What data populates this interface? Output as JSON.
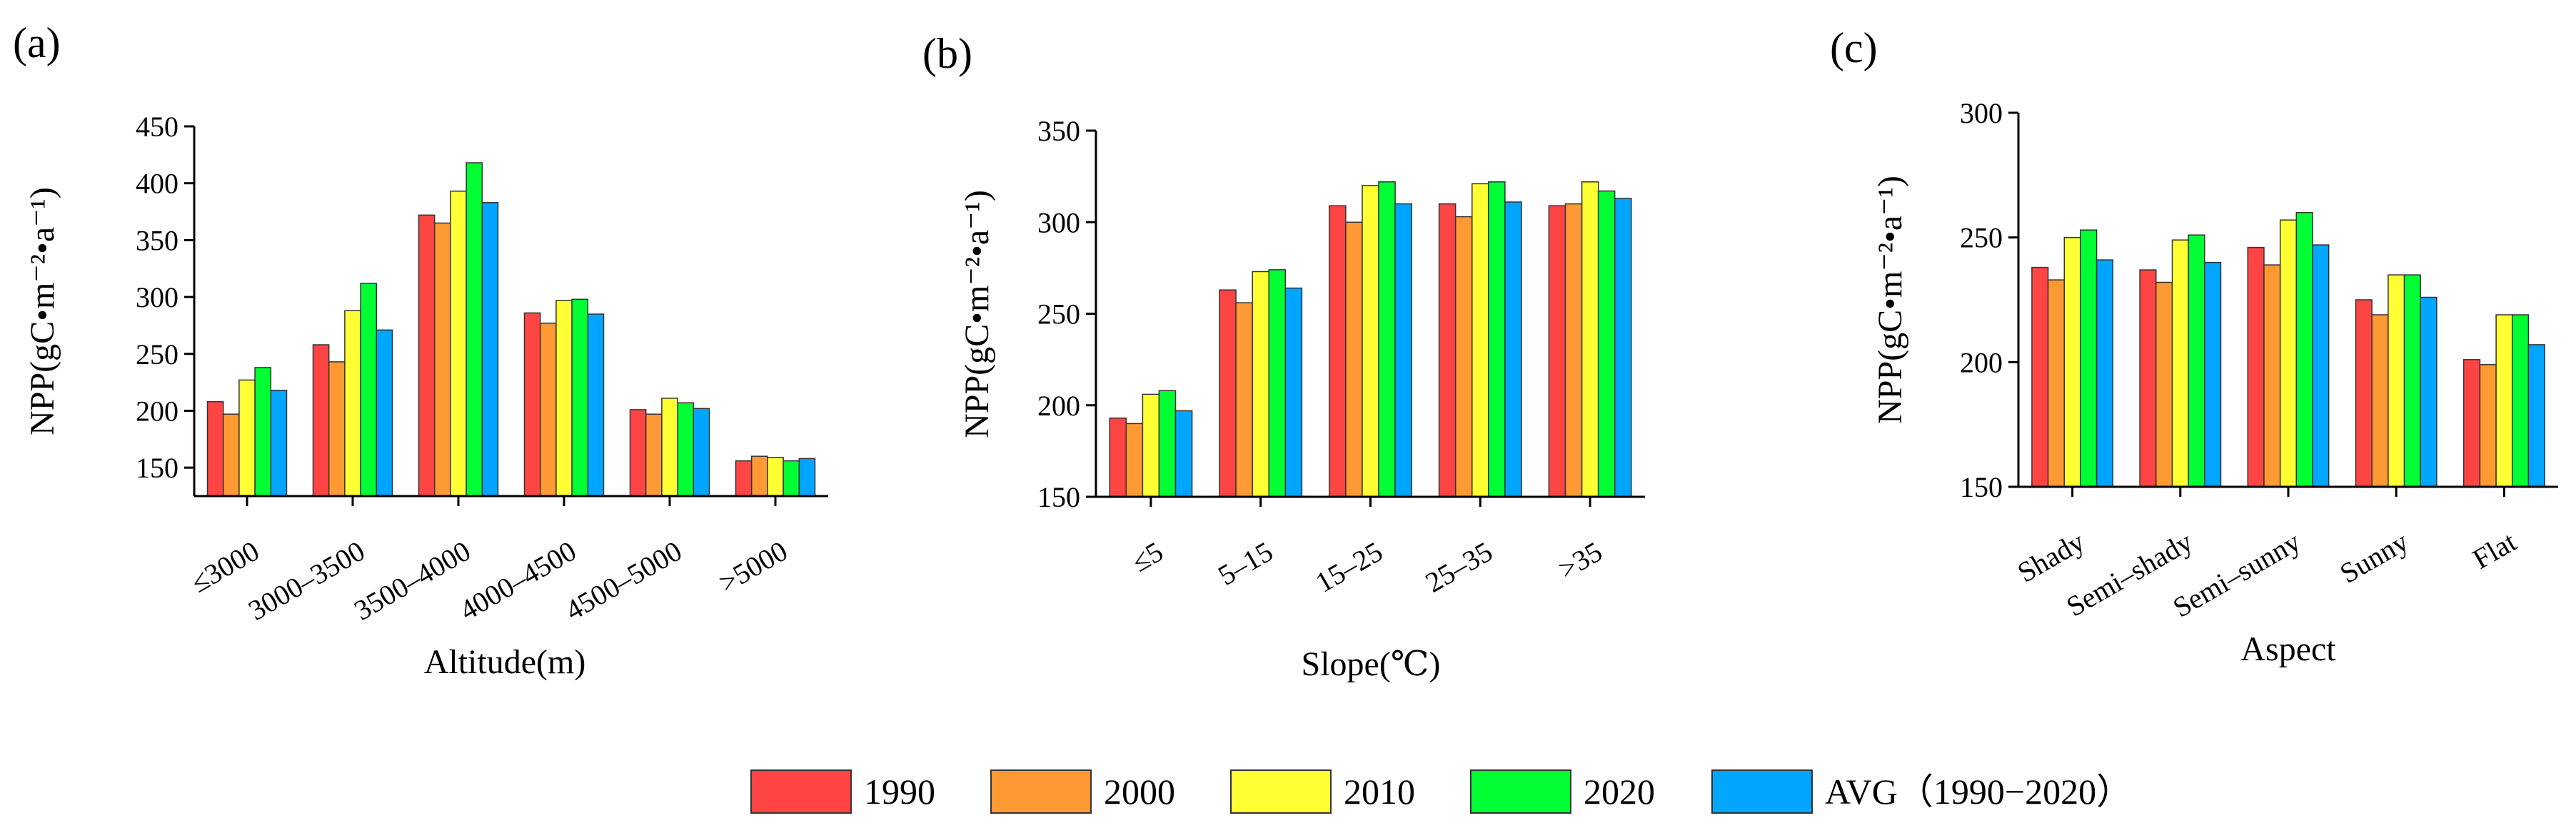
{
  "panel_labels": [
    "(a)",
    "(b)",
    "(c)"
  ],
  "series_colors": [
    "#ff4444",
    "#ff9933",
    "#ffff33",
    "#00ff33",
    "#00a5ff"
  ],
  "legend": [
    "1990",
    "2000",
    "2010",
    "2020",
    "AVG（1990−2020）"
  ],
  "chart_data": [
    {
      "type": "bar",
      "panel": "(a)",
      "xlabel": "Altitude(m)",
      "ylabel": "NPP(gC•m⁻²•a⁻¹)",
      "ylim": [
        125,
        450
      ],
      "yticks": [
        150,
        200,
        250,
        300,
        350,
        400,
        450
      ],
      "categories": [
        "≤3000",
        "3000–3500",
        "3500–4000",
        "4000–4500",
        "4500–5000",
        ">5000"
      ],
      "series": [
        {
          "name": "1990",
          "values": [
            208,
            258,
            372,
            286,
            201,
            156
          ]
        },
        {
          "name": "2000",
          "values": [
            197,
            243,
            365,
            277,
            197,
            160
          ]
        },
        {
          "name": "2010",
          "values": [
            227,
            288,
            393,
            297,
            211,
            159
          ]
        },
        {
          "name": "2020",
          "values": [
            238,
            312,
            418,
            298,
            207,
            156
          ]
        },
        {
          "name": "AVG（1990−2020）",
          "values": [
            218,
            271,
            383,
            285,
            202,
            158
          ]
        }
      ]
    },
    {
      "type": "bar",
      "panel": "(b)",
      "xlabel": "Slope(℃)",
      "ylabel": "NPP(gC•m⁻²•a⁻¹)",
      "ylim": [
        150,
        350
      ],
      "yticks": [
        150,
        200,
        250,
        300,
        350
      ],
      "categories": [
        "≤5",
        "5–15",
        "15–25",
        "25–35",
        ">35"
      ],
      "series": [
        {
          "name": "1990",
          "values": [
            193,
            263,
            309,
            310,
            309
          ]
        },
        {
          "name": "2000",
          "values": [
            190,
            256,
            300,
            303,
            310
          ]
        },
        {
          "name": "2010",
          "values": [
            206,
            273,
            320,
            321,
            322
          ]
        },
        {
          "name": "2020",
          "values": [
            208,
            274,
            322,
            322,
            317
          ]
        },
        {
          "name": "AVG（1990−2020）",
          "values": [
            197,
            264,
            310,
            311,
            313
          ]
        }
      ]
    },
    {
      "type": "bar",
      "panel": "(c)",
      "xlabel": "Aspect",
      "ylabel": "NPP(gC•m⁻²•a⁻¹)",
      "ylim": [
        150,
        300
      ],
      "yticks": [
        150,
        200,
        250,
        300
      ],
      "categories": [
        "Shady",
        "Semi–shady",
        "Semi–sunny",
        "Sunny",
        "Flat"
      ],
      "series": [
        {
          "name": "1990",
          "values": [
            238,
            237,
            246,
            225,
            201
          ]
        },
        {
          "name": "2000",
          "values": [
            233,
            232,
            239,
            219,
            199
          ]
        },
        {
          "name": "2010",
          "values": [
            250,
            249,
            257,
            235,
            219
          ]
        },
        {
          "name": "2020",
          "values": [
            253,
            251,
            260,
            235,
            219
          ]
        },
        {
          "name": "AVG（1990−2020）",
          "values": [
            241,
            240,
            247,
            226,
            207
          ]
        }
      ]
    }
  ]
}
